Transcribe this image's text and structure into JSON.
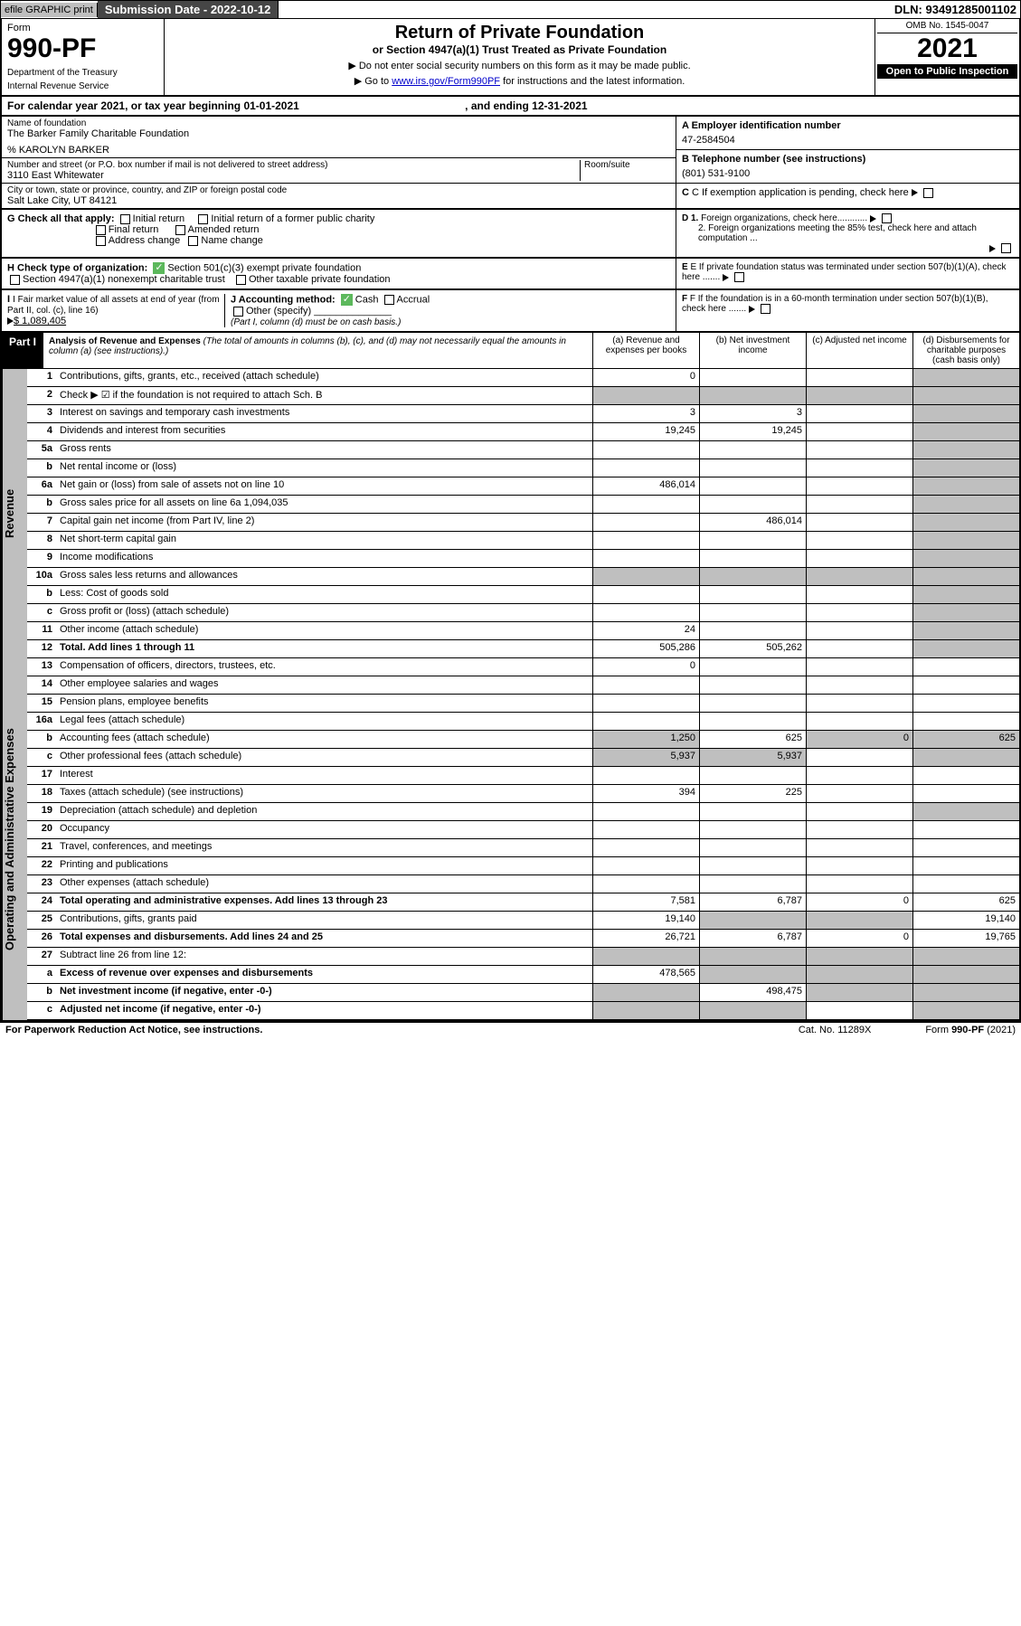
{
  "top": {
    "efile": "efile GRAPHIC print",
    "submission_label": "Submission Date - 2022-10-12",
    "dln": "DLN: 93491285001102"
  },
  "header": {
    "form": "Form",
    "form_no": "990-PF",
    "dept": "Department of the Treasury",
    "irs": "Internal Revenue Service",
    "title": "Return of Private Foundation",
    "subtitle": "or Section 4947(a)(1) Trust Treated as Private Foundation",
    "line1": "▶ Do not enter social security numbers on this form as it may be made public.",
    "line2_pre": "▶ Go to ",
    "line2_link": "www.irs.gov/Form990PF",
    "line2_post": " for instructions and the latest information.",
    "omb": "OMB No. 1545-0047",
    "year": "2021",
    "open": "Open to Public Inspection"
  },
  "cal": "For calendar year 2021, or tax year beginning 01-01-2021",
  "cal_end": ", and ending 12-31-2021",
  "id": {
    "name_lbl": "Name of foundation",
    "name": "The Barker Family Charitable Foundation",
    "care": "% KAROLYN BARKER",
    "addr_lbl": "Number and street (or P.O. box number if mail is not delivered to street address)",
    "addr": "3110 East Whitewater",
    "room_lbl": "Room/suite",
    "city_lbl": "City or town, state or province, country, and ZIP or foreign postal code",
    "city": "Salt Lake City, UT  84121",
    "a_lbl": "A Employer identification number",
    "a_val": "47-2584504",
    "b_lbl": "B Telephone number (see instructions)",
    "b_val": "(801) 531-9100",
    "c_lbl": "C If exemption application is pending, check here"
  },
  "g": {
    "label": "G Check all that apply:",
    "opts": [
      "Initial return",
      "Final return",
      "Address change",
      "Initial return of a former public charity",
      "Amended return",
      "Name change"
    ]
  },
  "h": {
    "label": "H Check type of organization:",
    "opt1": "Section 501(c)(3) exempt private foundation",
    "opt2": "Section 4947(a)(1) nonexempt charitable trust",
    "opt3": "Other taxable private foundation"
  },
  "i": {
    "label": "I Fair market value of all assets at end of year (from Part II, col. (c), line 16)",
    "val": "$  1,089,405"
  },
  "j": {
    "label": "J Accounting method:",
    "cash": "Cash",
    "accrual": "Accrual",
    "other": "Other (specify)",
    "note": "(Part I, column (d) must be on cash basis.)"
  },
  "right": {
    "d1": "D 1. Foreign organizations, check here............",
    "d2": "2. Foreign organizations meeting the 85% test, check here and attach computation ...",
    "e": "E  If private foundation status was terminated under section 507(b)(1)(A), check here .......",
    "f": "F  If the foundation is in a 60-month termination under section 507(b)(1)(B), check here ......."
  },
  "part1": {
    "label": "Part I",
    "title": "Analysis of Revenue and Expenses",
    "note": "(The total of amounts in columns (b), (c), and (d) may not necessarily equal the amounts in column (a) (see instructions).)",
    "cols": {
      "a": "(a) Revenue and expenses per books",
      "b": "(b) Net investment income",
      "c": "(c) Adjusted net income",
      "d": "(d) Disbursements for charitable purposes (cash basis only)"
    }
  },
  "vtabs": {
    "rev": "Revenue",
    "exp": "Operating and Administrative Expenses"
  },
  "rows": [
    {
      "n": "1",
      "d": "Contributions, gifts, grants, etc., received (attach schedule)",
      "a": "0"
    },
    {
      "n": "2",
      "d": "Check ▶ ☑ if the foundation is not required to attach Sch. B",
      "dots": true
    },
    {
      "n": "3",
      "d": "Interest on savings and temporary cash investments",
      "a": "3",
      "b": "3"
    },
    {
      "n": "4",
      "d": "Dividends and interest from securities",
      "a": "19,245",
      "b": "19,245"
    },
    {
      "n": "5a",
      "d": "Gross rents",
      "dots": true
    },
    {
      "n": "b",
      "d": "Net rental income or (loss)"
    },
    {
      "n": "6a",
      "d": "Net gain or (loss) from sale of assets not on line 10",
      "a": "486,014"
    },
    {
      "n": "b",
      "d": "Gross sales price for all assets on line 6a        1,094,035"
    },
    {
      "n": "7",
      "d": "Capital gain net income (from Part IV, line 2)",
      "b": "486,014"
    },
    {
      "n": "8",
      "d": "Net short-term capital gain",
      "dots": true
    },
    {
      "n": "9",
      "d": "Income modifications",
      "dots": true
    },
    {
      "n": "10a",
      "d": "Gross sales less returns and allowances"
    },
    {
      "n": "b",
      "d": "Less: Cost of goods sold"
    },
    {
      "n": "c",
      "d": "Gross profit or (loss) (attach schedule)"
    },
    {
      "n": "11",
      "d": "Other income (attach schedule)",
      "a": "24"
    },
    {
      "n": "12",
      "d": "Total. Add lines 1 through 11",
      "a": "505,286",
      "b": "505,262",
      "bold": true
    }
  ],
  "exp_rows": [
    {
      "n": "13",
      "d": "Compensation of officers, directors, trustees, etc.",
      "a": "0"
    },
    {
      "n": "14",
      "d": "Other employee salaries and wages",
      "dots": true
    },
    {
      "n": "15",
      "d": "Pension plans, employee benefits",
      "dots": true
    },
    {
      "n": "16a",
      "d": "Legal fees (attach schedule)",
      "dots": true
    },
    {
      "n": "b",
      "d": "Accounting fees (attach schedule)",
      "a": "1,250",
      "b": "625",
      "c": "0",
      "dd": "625"
    },
    {
      "n": "c",
      "d": "Other professional fees (attach schedule)",
      "a": "5,937",
      "b": "5,937"
    },
    {
      "n": "17",
      "d": "Interest",
      "dots": true
    },
    {
      "n": "18",
      "d": "Taxes (attach schedule) (see instructions)",
      "a": "394",
      "b": "225"
    },
    {
      "n": "19",
      "d": "Depreciation (attach schedule) and depletion"
    },
    {
      "n": "20",
      "d": "Occupancy",
      "dots": true
    },
    {
      "n": "21",
      "d": "Travel, conferences, and meetings",
      "dots": true
    },
    {
      "n": "22",
      "d": "Printing and publications",
      "dots": true
    },
    {
      "n": "23",
      "d": "Other expenses (attach schedule)",
      "dots": true
    },
    {
      "n": "24",
      "d": "Total operating and administrative expenses. Add lines 13 through 23",
      "a": "7,581",
      "b": "6,787",
      "c": "0",
      "dd": "625",
      "bold": true
    },
    {
      "n": "25",
      "d": "Contributions, gifts, grants paid",
      "a": "19,140",
      "dd": "19,140"
    },
    {
      "n": "26",
      "d": "Total expenses and disbursements. Add lines 24 and 25",
      "a": "26,721",
      "b": "6,787",
      "c": "0",
      "dd": "19,765",
      "bold": true
    },
    {
      "n": "27",
      "d": "Subtract line 26 from line 12:"
    },
    {
      "n": "a",
      "d": "Excess of revenue over expenses and disbursements",
      "a": "478,565",
      "bold": true
    },
    {
      "n": "b",
      "d": "Net investment income (if negative, enter -0-)",
      "b": "498,475",
      "bold": true
    },
    {
      "n": "c",
      "d": "Adjusted net income (if negative, enter -0-)",
      "bold": true
    }
  ],
  "grey_map": {
    "1": [
      "c",
      "d"
    ],
    "2": [
      "a",
      "b",
      "c",
      "d"
    ],
    "3": [
      "d"
    ],
    "4": [
      "d"
    ],
    "5a": [
      "d"
    ],
    "6a_b": [
      "a",
      "b",
      "c",
      "d"
    ],
    "6a": [
      "d"
    ],
    "7": [
      "a",
      "d"
    ],
    "8": [
      "a",
      "d"
    ],
    "9": [
      "a",
      "d"
    ],
    "10a": [
      "a",
      "b",
      "c",
      "d"
    ],
    "10b": [
      "a",
      "b",
      "c",
      "d"
    ],
    "10c": [
      "d"
    ],
    "11": [
      "d"
    ],
    "12": [
      "d"
    ],
    "19": [
      "d"
    ],
    "25": [
      "b",
      "c"
    ],
    "27": [
      "a",
      "b",
      "c",
      "d"
    ],
    "27a": [
      "b",
      "c",
      "d"
    ],
    "27b": [
      "a",
      "c",
      "d"
    ],
    "27c": [
      "a",
      "b",
      "d"
    ]
  },
  "footer": {
    "left": "For Paperwork Reduction Act Notice, see instructions.",
    "mid": "Cat. No. 11289X",
    "right": "Form 990-PF (2021)"
  }
}
